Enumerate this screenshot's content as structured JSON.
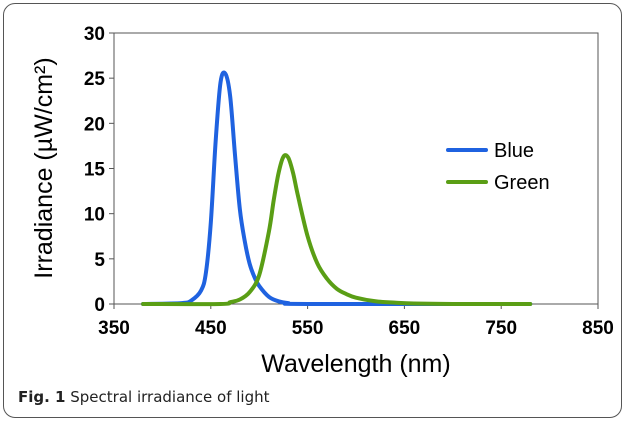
{
  "caption": {
    "label": "Fig. 1",
    "text": "Spectral irradiance of light"
  },
  "chart_data": {
    "type": "line",
    "xlabel": "Wavelength (nm)",
    "ylabel": "Irradiance (µW/cm²)",
    "xlim": [
      350,
      850
    ],
    "ylim": [
      0,
      30
    ],
    "x_ticks": [
      350,
      450,
      550,
      650,
      750,
      850
    ],
    "y_ticks": [
      0,
      5,
      10,
      15,
      20,
      25,
      30
    ],
    "grid": false,
    "legend": "right",
    "series": [
      {
        "name": "Blue",
        "color": "#1f62e0",
        "x": [
          380,
          420,
          430,
          440,
          445,
          450,
          455,
          460,
          465,
          470,
          475,
          480,
          485,
          490,
          495,
          500,
          510,
          520,
          530,
          550,
          780
        ],
        "y": [
          0,
          0.1,
          0.4,
          1.5,
          3.5,
          9,
          18,
          24.5,
          25.5,
          23,
          16.5,
          10.5,
          7,
          4.5,
          3,
          2,
          0.8,
          0.3,
          0.1,
          0,
          0
        ]
      },
      {
        "name": "Green",
        "color": "#5a9e15",
        "x": [
          380,
          460,
          470,
          480,
          490,
          500,
          510,
          515,
          520,
          525,
          530,
          535,
          540,
          550,
          560,
          570,
          580,
          590,
          600,
          620,
          640,
          660,
          700,
          780
        ],
        "y": [
          0,
          0,
          0.2,
          0.5,
          1.3,
          3.2,
          8,
          11.5,
          14.5,
          16.3,
          16.2,
          14.5,
          12,
          7.5,
          4.5,
          2.8,
          1.7,
          1.1,
          0.7,
          0.3,
          0.15,
          0.05,
          0,
          0
        ]
      }
    ]
  }
}
